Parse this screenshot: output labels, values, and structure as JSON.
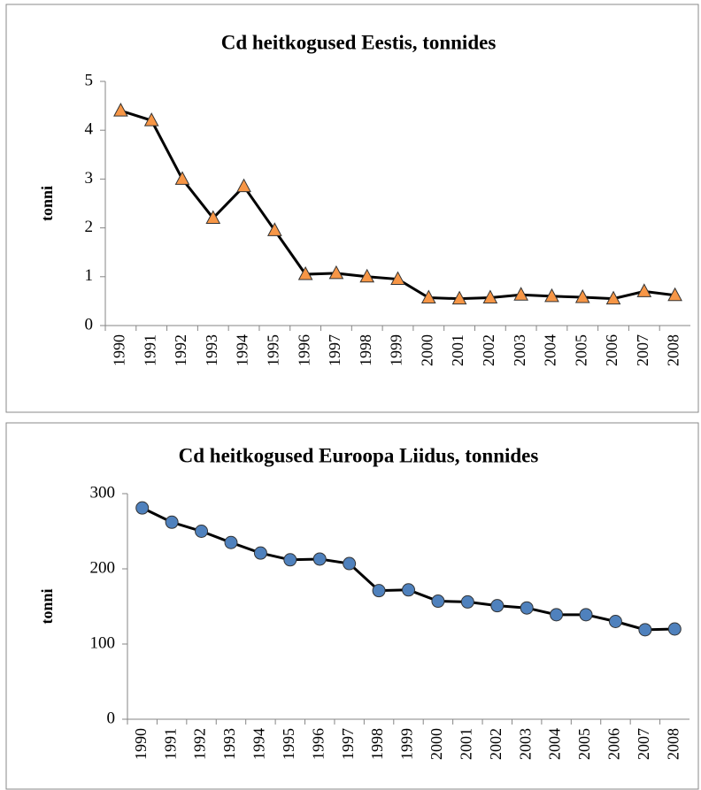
{
  "chart_data": [
    {
      "type": "line",
      "title": "Cd heitkogused  Eestis, tonnides",
      "y_label": "tonni",
      "categories": [
        "1990",
        "1991",
        "1992",
        "1993",
        "1994",
        "1995",
        "1996",
        "1997",
        "1998",
        "1999",
        "2000",
        "2001",
        "2002",
        "2003",
        "2004",
        "2005",
        "2006",
        "2007",
        "2008"
      ],
      "values": [
        4.4,
        4.2,
        3.0,
        2.2,
        2.85,
        1.95,
        1.05,
        1.07,
        1.0,
        0.95,
        0.57,
        0.55,
        0.57,
        0.63,
        0.6,
        0.58,
        0.55,
        0.7,
        0.62
      ],
      "color": "#f79646",
      "line_color": "#000000",
      "marker": "triangle",
      "ylim": [
        0,
        5
      ],
      "yticks": [
        0,
        1,
        2,
        3,
        4,
        5
      ],
      "grid": false
    },
    {
      "type": "line",
      "title": "Cd heitkogused  Euroopa Liidus, tonnides",
      "y_label": "tonni",
      "categories": [
        "1990",
        "1991",
        "1992",
        "1993",
        "1994",
        "1995",
        "1996",
        "1997",
        "1998",
        "1999",
        "2000",
        "2001",
        "2002",
        "2003",
        "2004",
        "2005",
        "2006",
        "2007",
        "2008"
      ],
      "values": [
        281,
        262,
        250,
        235,
        221,
        212,
        213,
        207,
        171,
        172,
        157,
        156,
        151,
        148,
        139,
        139,
        130,
        119,
        120
      ],
      "color": "#4f81bd",
      "line_color": "#000000",
      "marker": "circle",
      "ylim": [
        0,
        300
      ],
      "yticks": [
        0,
        100,
        200,
        300
      ],
      "grid": false
    }
  ]
}
